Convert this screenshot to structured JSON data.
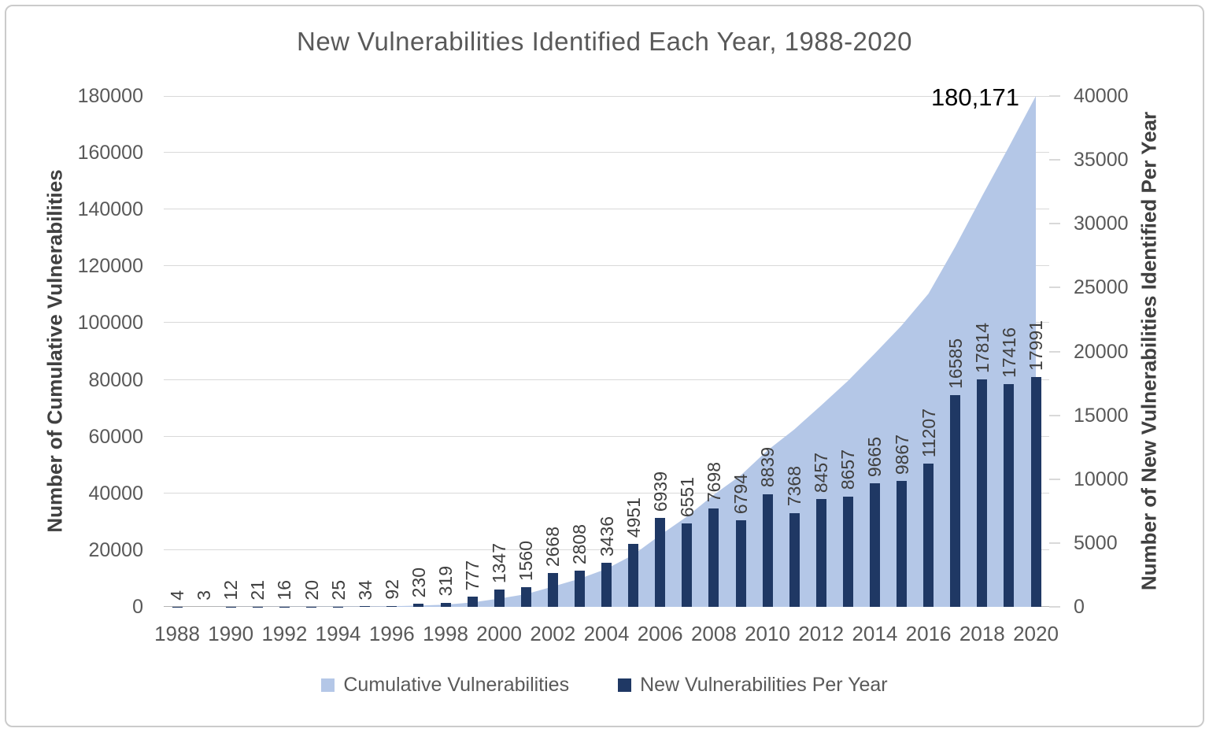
{
  "chart_data": {
    "type": "combo",
    "title": "New Vulnerabilities Identified Each Year, 1988-2020",
    "x": [
      1988,
      1989,
      1990,
      1991,
      1992,
      1993,
      1994,
      1995,
      1996,
      1997,
      1998,
      1999,
      2000,
      2001,
      2002,
      2003,
      2004,
      2005,
      2006,
      2007,
      2008,
      2009,
      2010,
      2011,
      2012,
      2013,
      2014,
      2015,
      2016,
      2017,
      2018,
      2019,
      2020
    ],
    "x_tick_labels": [
      "1988",
      "1990",
      "1992",
      "1994",
      "1996",
      "1998",
      "2000",
      "2002",
      "2004",
      "2006",
      "2008",
      "2010",
      "2012",
      "2014",
      "2016",
      "2018",
      "2020"
    ],
    "series": [
      {
        "name": "Cumulative Vulnerabilities",
        "type": "area",
        "axis": "left",
        "color": "#b4c7e7",
        "values": [
          4,
          7,
          19,
          40,
          56,
          76,
          101,
          135,
          227,
          457,
          776,
          1553,
          2900,
          4460,
          7128,
          9936,
          13372,
          18323,
          25262,
          31813,
          39511,
          46305,
          55144,
          62512,
          70969,
          79626,
          89291,
          99158,
          110365,
          126950,
          144764,
          162180,
          180171
        ]
      },
      {
        "name": "New Vulnerabilities Per Year",
        "type": "bar",
        "axis": "right",
        "color": "#1f3864",
        "values": [
          4,
          3,
          12,
          21,
          16,
          20,
          25,
          34,
          92,
          230,
          319,
          777,
          1347,
          1560,
          2668,
          2808,
          3436,
          4951,
          6939,
          6551,
          7698,
          6794,
          8839,
          7368,
          8457,
          8657,
          9665,
          9867,
          11207,
          16585,
          17814,
          17416,
          17991
        ],
        "data_labels": [
          "4",
          "3",
          "12",
          "21",
          "16",
          "20",
          "25",
          "34",
          "92",
          "230",
          "319",
          "777",
          "1347",
          "1560",
          "2668",
          "2808",
          "3436",
          "4951",
          "6939",
          "6551",
          "7698",
          "6794",
          "8839",
          "7368",
          "8457",
          "8657",
          "9665",
          "9867",
          "11207",
          "16585",
          "17814",
          "17416",
          "17991"
        ]
      }
    ],
    "left_axis": {
      "label": "Number of Cumulative Vulnerabilities",
      "min": 0,
      "max": 180000,
      "step": 20000
    },
    "right_axis": {
      "label": "Number of New Vulnerabilities Identified Per Year",
      "min": 0,
      "max": 40000,
      "step": 5000
    },
    "annotation": "180,171",
    "grid": "horizontal",
    "legend_position": "bottom",
    "legend": [
      {
        "label": "Cumulative Vulnerabilities",
        "color": "#b4c7e7"
      },
      {
        "label": "New Vulnerabilities Per Year",
        "color": "#1f3864"
      }
    ],
    "colors": {
      "area_fill": "#b4c7e7",
      "bar_fill": "#1f3864",
      "gridline": "#d9d9d9",
      "axis_line": "#b3b3b3",
      "tick_label": "#595959",
      "bar_label": "#3f3f3f",
      "title": "#595959",
      "axis_title": "#404040",
      "annotation": "#000000",
      "border": "#cbcbcb"
    }
  }
}
